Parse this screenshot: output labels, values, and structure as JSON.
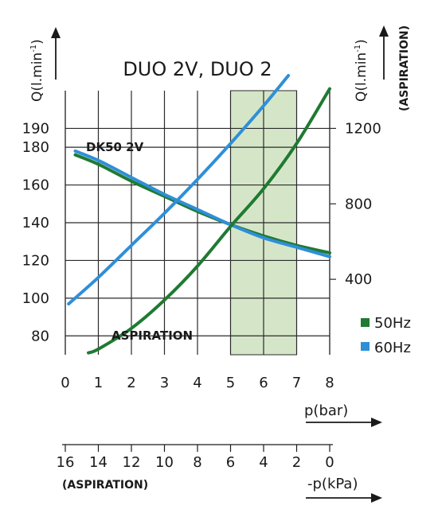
{
  "chart_data": {
    "type": "line",
    "title": "DUO 2V, DUO 2",
    "left_axis": {
      "label": "Q(l.min",
      "label_sup": "-1",
      "ticks": [
        80,
        100,
        120,
        140,
        160,
        180,
        190
      ],
      "range": [
        70,
        210
      ]
    },
    "right_axis": {
      "label": "Q(l.min",
      "label_sup": "-1",
      "sublabel": "(ASPIRATION)",
      "ticks": [
        400,
        800,
        1200
      ],
      "range": [
        0,
        1400
      ]
    },
    "x_axis": {
      "label": "p(bar)",
      "ticks": [
        0,
        1,
        2,
        3,
        4,
        5,
        6,
        7,
        8
      ],
      "range": [
        0,
        8
      ]
    },
    "x2_axis": {
      "label": "-p(kPa)",
      "sublabel": "(ASPIRATION)",
      "ticks": [
        16,
        14,
        12,
        10,
        8,
        6,
        4,
        2,
        0
      ]
    },
    "highlight_band": {
      "x": [
        5,
        7
      ],
      "color": "#d5e6c8"
    },
    "annotations": {
      "dk50": "DK50 2V",
      "aspiration": "ASPIRATION"
    },
    "legend": {
      "placement": "bottom-right",
      "items": [
        {
          "name": "50Hz",
          "color": "#1f7a32"
        },
        {
          "name": "60Hz",
          "color": "#2f8fd8"
        }
      ]
    },
    "series": [
      {
        "color": "#1f7a32",
        "axis": "left",
        "x": [
          0.3,
          1,
          2,
          3,
          4,
          5,
          6,
          7,
          8
        ],
        "values": [
          176,
          171,
          162,
          154,
          146,
          139,
          133,
          128,
          124
        ]
      },
      {
        "color": "#2f8fd8",
        "axis": "left",
        "x": [
          0.3,
          1,
          2,
          3,
          4,
          5,
          6,
          7,
          8
        ],
        "values": [
          178,
          173,
          164,
          155,
          147,
          139,
          132,
          127,
          122
        ]
      },
      {
        "color": "#2f8fd8",
        "axis": "left",
        "x": [
          0.1,
          1,
          2,
          3,
          4,
          5,
          6,
          6.75
        ],
        "values": [
          97,
          111,
          128,
          145,
          163,
          182,
          202,
          218
        ]
      },
      {
        "color": "#1f7a32",
        "axis": "left",
        "x": [
          0.7,
          1,
          2,
          3,
          4,
          5,
          6,
          7,
          8
        ],
        "values": [
          71,
          73,
          84,
          99,
          117,
          138,
          158,
          182,
          211
        ]
      }
    ]
  }
}
